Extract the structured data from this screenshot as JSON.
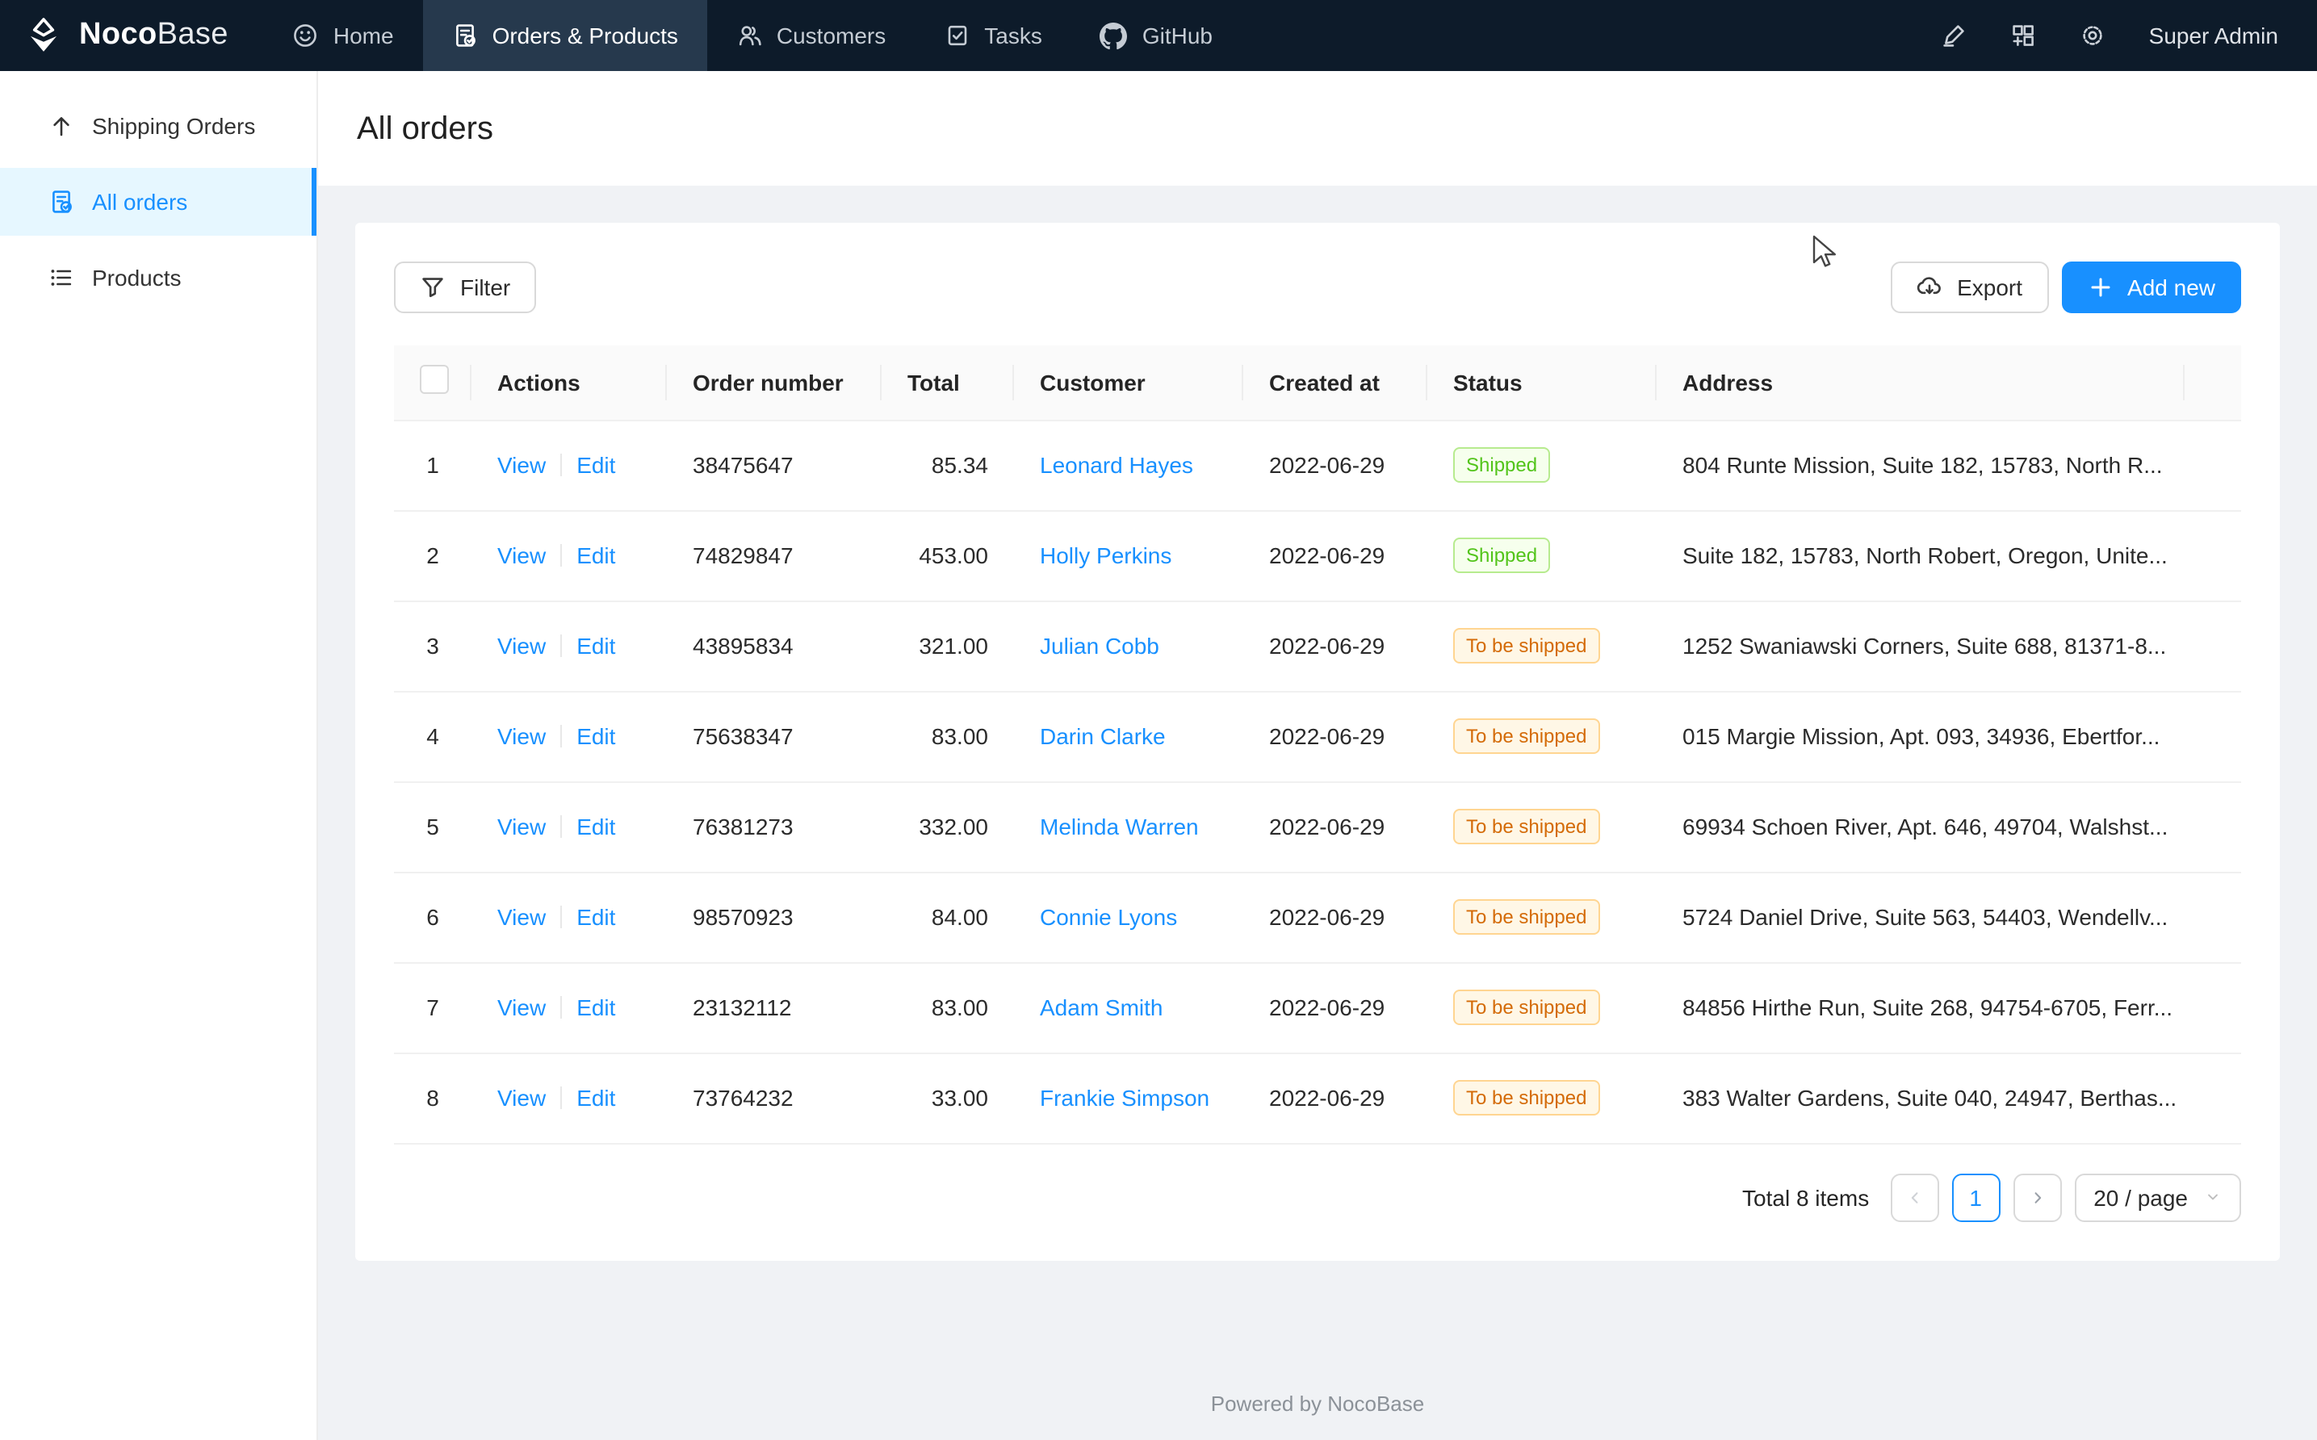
{
  "navbar": {
    "brand": {
      "name_bold": "Noco",
      "name_light": "Base",
      "logo_icon": "nocobase-logo-icon"
    },
    "items": [
      {
        "label": "Home",
        "icon": "smiley-icon",
        "active": false
      },
      {
        "label": "Orders & Products",
        "icon": "file-check-icon",
        "active": true
      },
      {
        "label": "Customers",
        "icon": "users-icon",
        "active": false
      },
      {
        "label": "Tasks",
        "icon": "task-check-icon",
        "active": false
      },
      {
        "label": "GitHub",
        "icon": "github-icon",
        "active": false
      }
    ],
    "right": {
      "icons": [
        {
          "name": "highlighter-icon"
        },
        {
          "name": "plugin-manager-icon"
        },
        {
          "name": "settings-gear-icon"
        }
      ],
      "user": "Super Admin"
    }
  },
  "sidebar": {
    "items": [
      {
        "label": "Shipping Orders",
        "icon": "arrow-up-icon",
        "active": false
      },
      {
        "label": "All orders",
        "icon": "file-check-icon",
        "active": true
      },
      {
        "label": "Products",
        "icon": "list-icon",
        "active": false
      }
    ]
  },
  "page": {
    "title": "All orders"
  },
  "toolbar": {
    "filter_label": "Filter",
    "export_label": "Export",
    "add_new_label": "Add new"
  },
  "table": {
    "columns": [
      "",
      "Actions",
      "Order number",
      "Total",
      "Customer",
      "Created at",
      "Status",
      "Address"
    ],
    "action_labels": {
      "view": "View",
      "edit": "Edit"
    },
    "status_colors": {
      "Shipped": {
        "text": "#52c41a",
        "border": "#b7eb8f",
        "bg": "#f6ffed"
      },
      "To be shipped": {
        "text": "#d46b08",
        "border": "#ffd591",
        "bg": "#fff7e6"
      }
    },
    "rows": [
      {
        "index": "1",
        "order_number": "38475647",
        "total": "85.34",
        "customer": "Leonard Hayes",
        "created_at": "2022-06-29",
        "status": "Shipped",
        "address": "804 Runte Mission, Suite 182, 15783, North R..."
      },
      {
        "index": "2",
        "order_number": "74829847",
        "total": "453.00",
        "customer": "Holly Perkins",
        "created_at": "2022-06-29",
        "status": "Shipped",
        "address": "Suite 182, 15783, North Robert, Oregon, Unite..."
      },
      {
        "index": "3",
        "order_number": "43895834",
        "total": "321.00",
        "customer": "Julian Cobb",
        "created_at": "2022-06-29",
        "status": "To be shipped",
        "address": "1252 Swaniawski Corners, Suite 688, 81371-8..."
      },
      {
        "index": "4",
        "order_number": "75638347",
        "total": "83.00",
        "customer": "Darin Clarke",
        "created_at": "2022-06-29",
        "status": "To be shipped",
        "address": "015 Margie Mission, Apt. 093, 34936, Ebertfor..."
      },
      {
        "index": "5",
        "order_number": "76381273",
        "total": "332.00",
        "customer": "Melinda Warren",
        "created_at": "2022-06-29",
        "status": "To be shipped",
        "address": "69934 Schoen River, Apt. 646, 49704, Walshst..."
      },
      {
        "index": "6",
        "order_number": "98570923",
        "total": "84.00",
        "customer": "Connie Lyons",
        "created_at": "2022-06-29",
        "status": "To be shipped",
        "address": "5724 Daniel Drive, Suite 563, 54403, Wendellv..."
      },
      {
        "index": "7",
        "order_number": "23132112",
        "total": "83.00",
        "customer": "Adam Smith",
        "created_at": "2022-06-29",
        "status": "To be shipped",
        "address": "84856 Hirthe Run, Suite 268, 94754-6705, Ferr..."
      },
      {
        "index": "8",
        "order_number": "73764232",
        "total": "33.00",
        "customer": "Frankie Simpson",
        "created_at": "2022-06-29",
        "status": "To be shipped",
        "address": "383 Walter Gardens, Suite 040, 24947, Berthas..."
      }
    ]
  },
  "pagination": {
    "total_text": "Total 8 items",
    "current_page": "1",
    "page_size_label": "20 / page"
  },
  "footer": {
    "text": "Powered by NocoBase"
  },
  "colors": {
    "accent": "#1890ff",
    "nav_bg": "#0d1b2a",
    "nav_active_bg": "#26394d",
    "sidebar_active_bg": "#e6f7ff"
  }
}
